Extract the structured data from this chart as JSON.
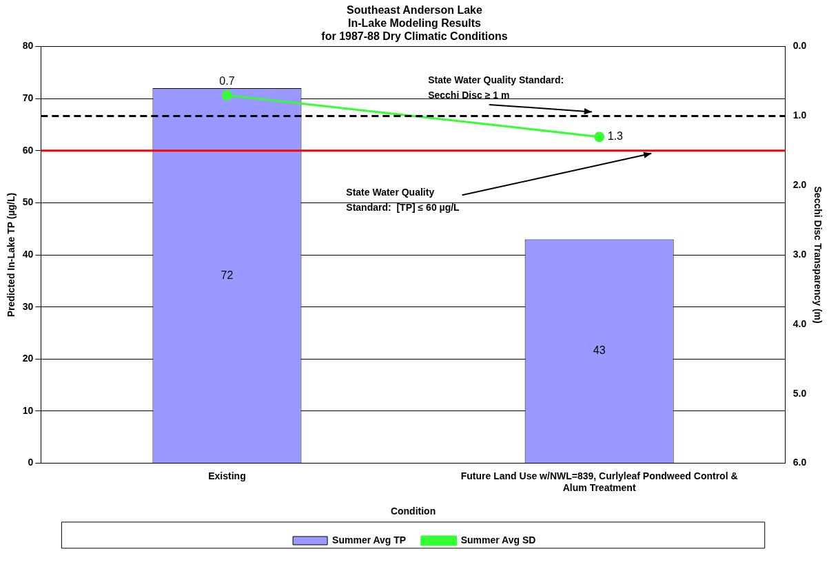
{
  "chart_data": {
    "type": "bar",
    "title": "Southeast Anderson Lake\nIn-Lake Modeling Results\nfor 1987-88 Dry Climatic Conditions",
    "xlabel": "Condition",
    "ylabel": "Predicted In-Lake TP (µg/L)",
    "y2label": "Secchi Disc Transparency (m)",
    "categories": [
      "Existing",
      "Future Land Use w/NWL=839, Curlyleaf Pondweed Control & Alum Treatment"
    ],
    "series": [
      {
        "name": "Summer Avg TP",
        "color": "#9999ff",
        "values": [
          72,
          43
        ]
      },
      {
        "name": "Summer Avg SD",
        "type": "line",
        "axis": "y2",
        "color": "#33ff33",
        "values": [
          0.7,
          1.3
        ]
      }
    ],
    "data_labels": true,
    "ylim": [
      0,
      80
    ],
    "yticks": [
      0,
      10,
      20,
      30,
      40,
      50,
      60,
      70,
      80
    ],
    "y2lim": [
      6,
      0
    ],
    "y2ticks": [
      {
        "value": 0,
        "label": "0.0"
      },
      {
        "value": 1,
        "label": "1.0"
      },
      {
        "value": 2,
        "label": "2.0"
      },
      {
        "value": 3,
        "label": "3.0"
      },
      {
        "value": 4,
        "label": "4.0"
      },
      {
        "value": 5,
        "label": "5.0"
      },
      {
        "value": 6,
        "label": "6.0"
      }
    ],
    "ref_lines": [
      {
        "axis": "y2",
        "value": 1,
        "label": "State Water Quality Standard:\nSecchi Disc ≥ 1 m",
        "color": "#000000",
        "line_style": "dashed"
      },
      {
        "axis": "y",
        "value": 60,
        "label": "State Water Quality\nStandard:  [TP] ≤ 60 µg/L",
        "color": "#ff0000",
        "line_style": "solid"
      }
    ],
    "grid": "y",
    "legend": "bottom",
    "marker": "circle",
    "line_style": "solid"
  }
}
